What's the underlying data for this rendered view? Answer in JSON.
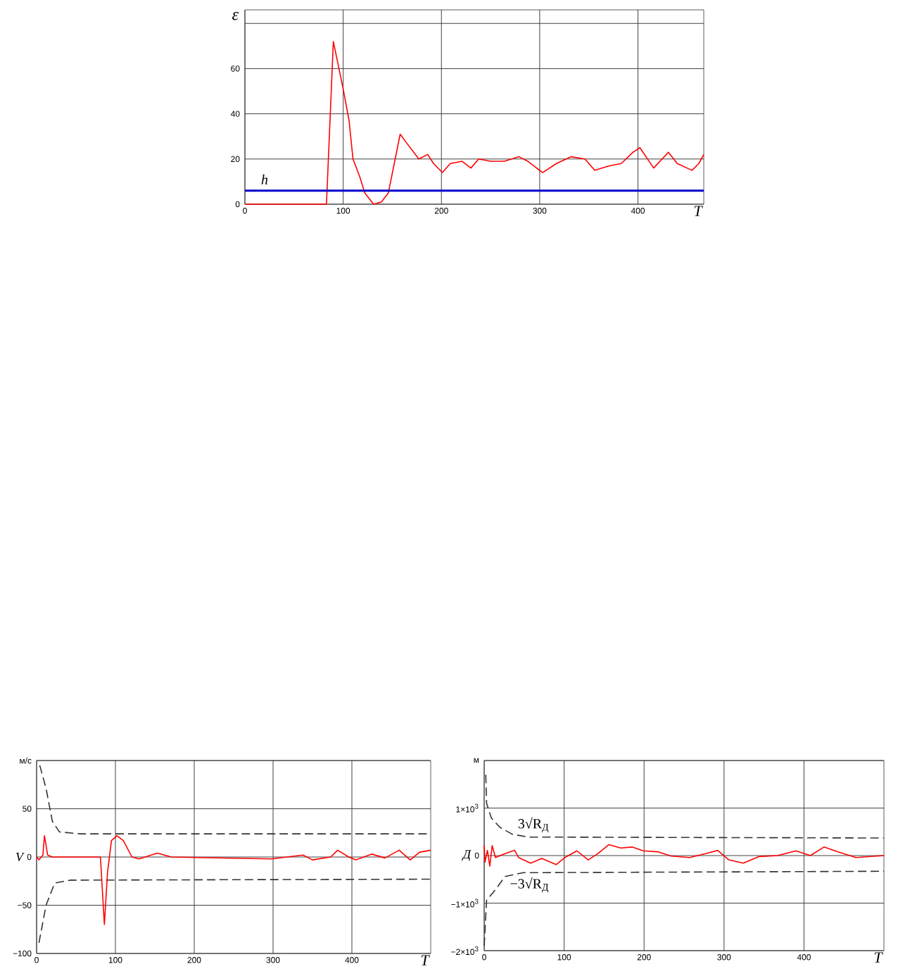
{
  "chart_data": [
    {
      "type": "line",
      "xlabel": "T",
      "ylabel": "ε",
      "xlim": [
        0,
        467
      ],
      "ylim": [
        0,
        86
      ],
      "xticks": [
        0,
        100,
        200,
        300,
        400
      ],
      "yticks": [
        0,
        20,
        40,
        60,
        {
          "value": 80,
          "label": null
        }
      ],
      "grid": true,
      "series": [
        {
          "color": "#ff0000",
          "x": [
            0,
            83,
            90,
            100,
            106,
            110,
            117,
            122,
            131,
            139,
            146,
            158,
            163,
            170,
            177,
            186,
            192,
            201,
            209,
            221,
            230,
            238,
            250,
            264,
            279,
            288,
            303,
            317,
            332,
            346,
            356,
            371,
            383,
            395,
            402,
            416,
            431,
            440,
            455,
            462,
            467
          ],
          "values": [
            0,
            0,
            72,
            51,
            37,
            20,
            12,
            5,
            0,
            1,
            5,
            31,
            28,
            24,
            20,
            22,
            18,
            14,
            18,
            19,
            16,
            20,
            19,
            19,
            21,
            19,
            14,
            18,
            21,
            20,
            15,
            17,
            18,
            23,
            25,
            16,
            23,
            18,
            15,
            18,
            22
          ]
        }
      ],
      "ref_lines": [
        {
          "axis": "y",
          "value": 6,
          "label": "h",
          "color": "#0000cc"
        }
      ]
    },
    {
      "type": "line",
      "xlabel": "T",
      "ylabel": "V",
      "xlim": [
        0,
        500
      ],
      "ylim": [
        -100,
        100
      ],
      "xticks": [
        0,
        100,
        200,
        300,
        400
      ],
      "yticks": [
        {
          "value": -100,
          "label": "−100"
        },
        {
          "value": -50,
          "label": "−50"
        },
        0,
        50,
        {
          "value": 100,
          "label": "м/с"
        }
      ],
      "grid": true,
      "series": [
        {
          "color": "#333333",
          "line_style": "dashed",
          "x": [
            4,
            12,
            20,
            29,
            55,
            500
          ],
          "values": [
            95,
            71,
            37,
            26,
            24,
            24
          ]
        },
        {
          "color": "#333333",
          "line_style": "dashed",
          "x": [
            3,
            12,
            23,
            43,
            500
          ],
          "values": [
            -89,
            -50,
            -27,
            -24,
            -23
          ]
        },
        {
          "color": "#ff0000",
          "x": [
            0,
            3,
            8,
            10,
            14,
            20,
            80,
            81,
            86,
            90,
            95,
            102,
            110,
            121,
            130,
            153,
            171,
            298,
            338,
            350,
            373,
            382,
            396,
            405,
            425,
            442,
            460,
            474,
            486,
            500
          ],
          "values": [
            0,
            -3,
            2,
            22,
            2,
            0,
            0,
            0,
            -70,
            -16,
            17,
            22,
            17,
            0,
            -2,
            4,
            0,
            -2,
            2,
            -3,
            0,
            7,
            0,
            -3,
            3,
            -1,
            7,
            -3,
            5,
            7
          ]
        }
      ]
    },
    {
      "type": "line",
      "xlabel": "T",
      "ylabel": "Д",
      "xlim": [
        0,
        500
      ],
      "ylim": [
        -2000,
        2000
      ],
      "xticks": [
        0,
        100,
        200,
        300,
        400
      ],
      "yticks": [
        {
          "value": -2000,
          "label": "−2×10$^{3}$"
        },
        {
          "value": -1000,
          "label": "−1×10$^{3}$"
        },
        0,
        {
          "value": 1000,
          "label": "1×10$^{3}$"
        },
        {
          "value": 2000,
          "label": "м"
        }
      ],
      "grid": true,
      "series": [
        {
          "color": "#333333",
          "line_style": "dashed",
          "x": [
            2,
            3,
            9,
            20,
            35,
            55,
            500
          ],
          "values": [
            1700,
            1100,
            790,
            590,
            450,
            390,
            370
          ]
        },
        {
          "color": "#333333",
          "line_style": "dashed",
          "x": [
            0,
            3,
            14,
            26,
            49,
            500
          ],
          "values": [
            -1900,
            -940,
            -720,
            -440,
            -360,
            -330
          ]
        },
        {
          "color": "#ff0000",
          "x": [
            0,
            1,
            4,
            7,
            10,
            14,
            26,
            38,
            43,
            58,
            72,
            90,
            101,
            116,
            130,
            142,
            156,
            171,
            185,
            199,
            217,
            234,
            257,
            277,
            292,
            306,
            324,
            344,
            367,
            390,
            408,
            425,
            442,
            465,
            500
          ],
          "values": [
            210,
            -140,
            110,
            -220,
            210,
            -40,
            40,
            110,
            -40,
            -160,
            -60,
            -190,
            -40,
            100,
            -90,
            40,
            230,
            160,
            180,
            100,
            80,
            -10,
            -40,
            40,
            110,
            -90,
            -160,
            -20,
            0,
            100,
            0,
            180,
            80,
            -40,
            0
          ]
        }
      ],
      "annotations": [
        {
          "text": "3√R$_{Д}$",
          "x": 40,
          "y": 450
        },
        {
          "text": "−3√R$_{Д}$",
          "x": 30,
          "y": -420
        }
      ]
    }
  ]
}
